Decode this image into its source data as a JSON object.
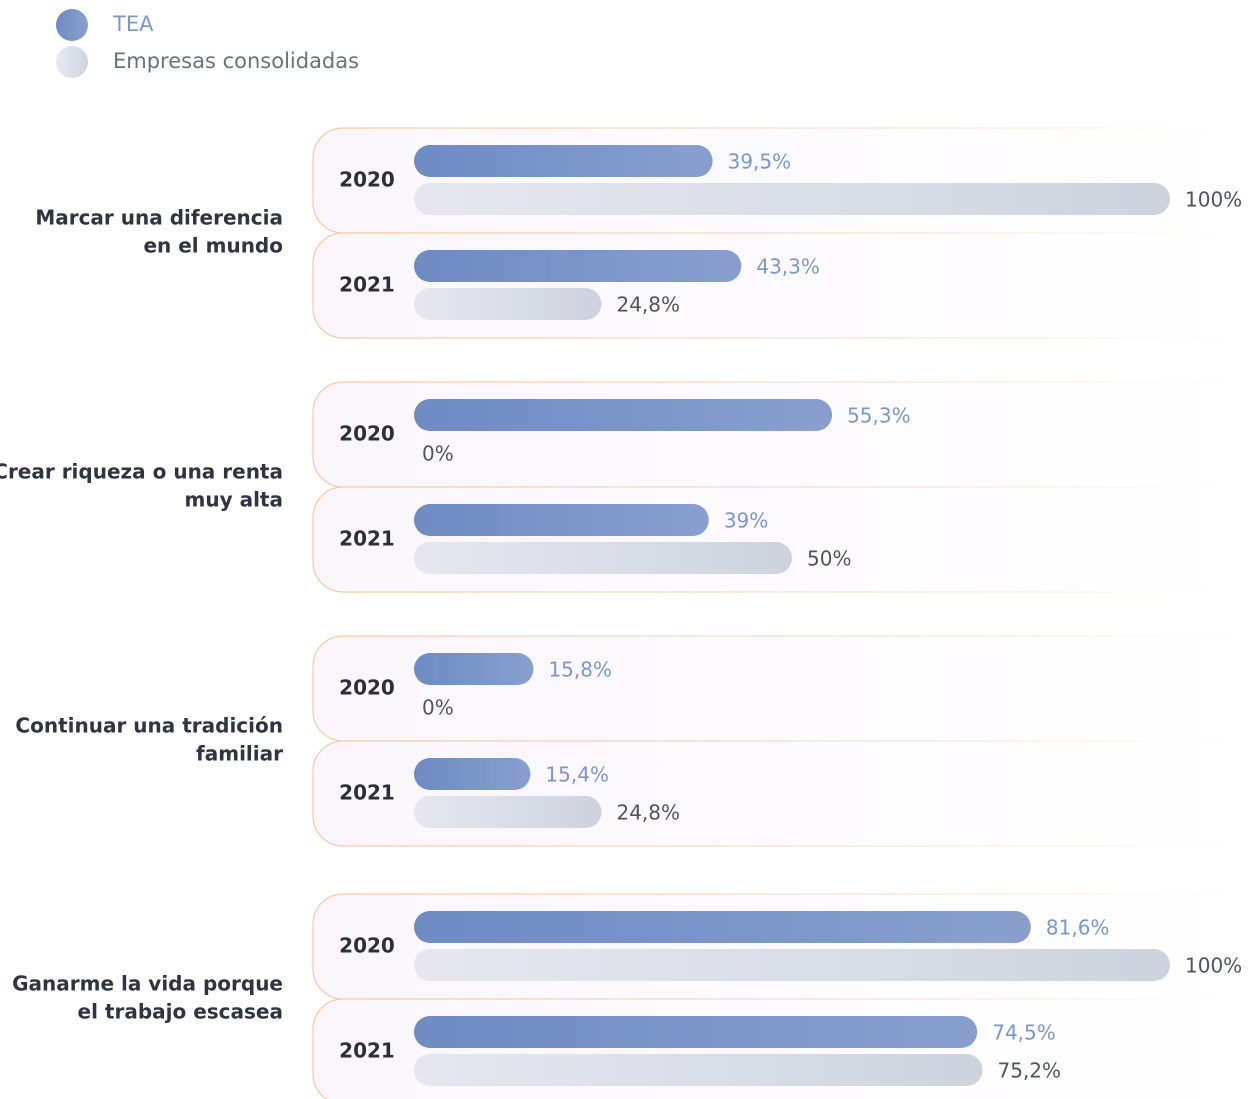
{
  "chart_data": {
    "type": "bar",
    "categories": [
      [
        "Marcar una diferencia",
        "en el mundo"
      ],
      [
        "Crear riqueza o una renta",
        "muy alta"
      ],
      [
        "Continuar una tradición",
        "familiar"
      ],
      [
        "Ganarme la vida porque",
        "el trabajo escasea"
      ]
    ],
    "years": [
      "2020",
      "2021"
    ],
    "xlim": [
      0,
      100
    ],
    "series": [
      {
        "name": "TEA",
        "color": "#6f8bc4",
        "values": [
          [
            39.5,
            43.3
          ],
          [
            55.3,
            39
          ],
          [
            15.8,
            15.4
          ],
          [
            81.6,
            74.5
          ]
        ],
        "value_labels": [
          [
            "39,5%",
            "43,3%"
          ],
          [
            "55,3%",
            "39%"
          ],
          [
            "15,8%",
            "15,4%"
          ],
          [
            "81,6%",
            "74,5%"
          ]
        ]
      },
      {
        "name": "Empresas consolidadas",
        "color": "#cdd3de",
        "values": [
          [
            100,
            24.8
          ],
          [
            0,
            50
          ],
          [
            0,
            24.8
          ],
          [
            100,
            75.2
          ]
        ],
        "value_labels": [
          [
            "100%",
            "24,8%"
          ],
          [
            "0%",
            "50%"
          ],
          [
            "0%",
            "24,8%"
          ],
          [
            "100%",
            "75,2%"
          ]
        ]
      }
    ]
  }
}
